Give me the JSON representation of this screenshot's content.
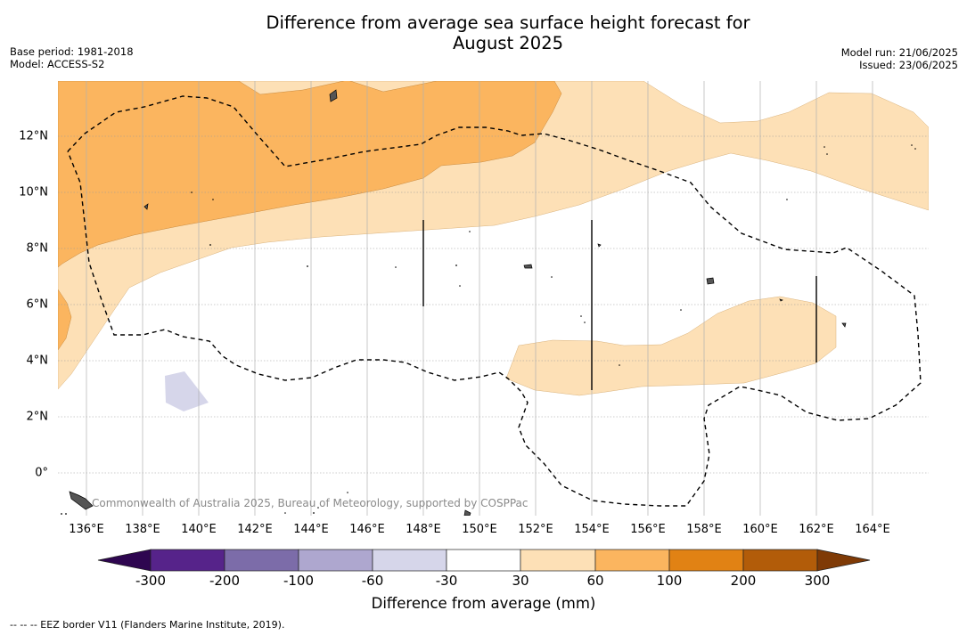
{
  "title_line1": "Difference from average sea surface height forecast for",
  "title_line2": "August 2025",
  "base_period": "Base period: 1981-2018",
  "model": "Model: ACCESS-S2",
  "model_run": "Model run: 21/06/2025",
  "issued": "Issued: 23/06/2025",
  "credit": "Commonwealth of Australia 2025, Bureau of Meteorology, supported by COSPPac",
  "footnote": "--  --  -- EEZ border V11 (Flanders Marine Institute, 2019).",
  "map": {
    "region": "Western Pacific (Micronesia)",
    "longitude_range": [
      135,
      166
    ],
    "latitude_range": [
      -1.5,
      14
    ],
    "x_ticks": [
      "136°E",
      "138°E",
      "140°E",
      "142°E",
      "144°E",
      "146°E",
      "148°E",
      "150°E",
      "152°E",
      "154°E",
      "156°E",
      "158°E",
      "160°E",
      "162°E",
      "164°E"
    ],
    "y_ticks": [
      "12°N",
      "10°N",
      "8°N",
      "6°N",
      "4°N",
      "2°N",
      "0°"
    ],
    "gridlines": true
  },
  "colorbar": {
    "title": "Difference from average (mm)",
    "labels": [
      "-300",
      "-200",
      "-100",
      "-60",
      "-30",
      "30",
      "60",
      "100",
      "200",
      "300"
    ],
    "colors": [
      "#56238a",
      "#7c6ca9",
      "#aea7cf",
      "#d6d6ea",
      "#ffffff",
      "#fde0b6",
      "#fbb55f",
      "#e18214",
      "#b25c09"
    ],
    "under_color": "#2e0650",
    "over_color": "#7f3a06",
    "extend": "both"
  }
}
